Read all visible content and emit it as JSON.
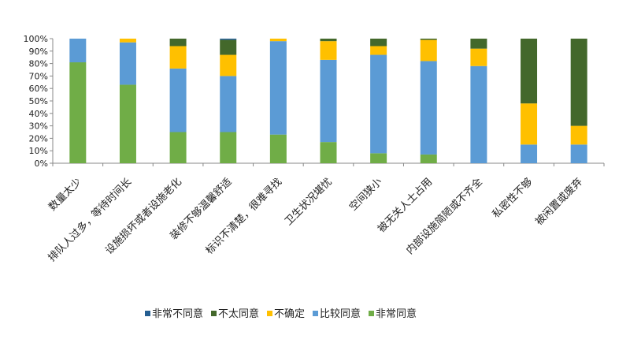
{
  "chart_data": {
    "type": "bar",
    "stacked": true,
    "percent": true,
    "title": "",
    "xlabel": "",
    "ylabel": "",
    "ylim": [
      0,
      100
    ],
    "yticks": [
      "0%",
      "10%",
      "20%",
      "30%",
      "40%",
      "50%",
      "60%",
      "70%",
      "80%",
      "90%",
      "100%"
    ],
    "categories": [
      "数量太少",
      "排队人过多，等待时间长",
      "设施损坏或者设施老化",
      "装修不够温馨舒适",
      "标识不清楚，很难寻找",
      "卫生状况堪忧",
      "空间狭小",
      "被无关人士占用",
      "内部设施简陋或不齐全",
      "私密性不够",
      "被闲置或废弃"
    ],
    "legend_position": "bottom",
    "series": [
      {
        "name": "非常同意",
        "color": "#70AD47",
        "values": [
          81,
          63,
          25,
          25,
          23,
          17,
          8,
          7,
          0,
          0,
          0
        ]
      },
      {
        "name": "比较同意",
        "color": "#5B9BD5",
        "values": [
          19,
          34,
          51,
          45,
          75,
          66,
          79,
          75,
          78,
          15,
          15
        ]
      },
      {
        "name": "不确定",
        "color": "#FFC000",
        "values": [
          0,
          3,
          18,
          17,
          2,
          15,
          7,
          17,
          14,
          33,
          15
        ]
      },
      {
        "name": "不太同意",
        "color": "#43682B",
        "values": [
          0,
          0,
          6,
          12,
          0,
          2,
          6,
          1,
          8,
          52,
          70
        ]
      },
      {
        "name": "非常不同意",
        "color": "#255E91",
        "values": [
          0,
          0,
          0,
          1,
          0,
          0,
          0,
          0,
          0,
          0,
          0
        ]
      }
    ],
    "legend_order": [
      "非常不同意",
      "不太同意",
      "不确定",
      "比较同意",
      "非常同意"
    ]
  }
}
